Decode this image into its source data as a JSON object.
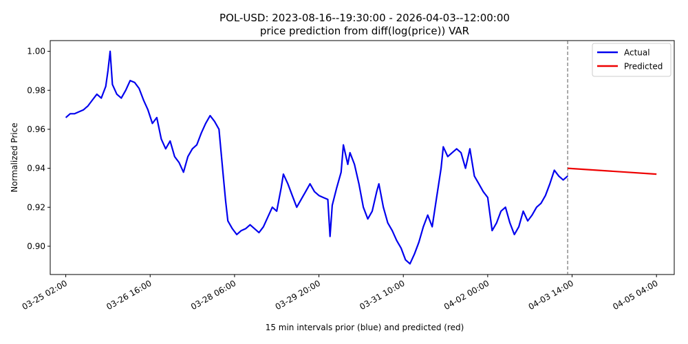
{
  "chart_data": {
    "type": "line",
    "title": "POL-USD: 2023-08-16--19:30:00 - 2026-04-03--12:00:00",
    "subtitle": "price prediction from diff(log(price)) VAR",
    "xlabel": "15 min intervals prior (blue) and predicted (red)",
    "ylabel": "Normalized Price",
    "x_tick_labels": [
      "03-25 02:00",
      "03-26 16:00",
      "03-28 06:00",
      "03-29 20:00",
      "03-31 10:00",
      "04-02 00:00",
      "04-03 14:00",
      "04-05 04:00"
    ],
    "x_tick_times": [
      "2026-03-25T02:00",
      "2026-03-26T16:00",
      "2026-03-28T06:00",
      "2026-03-29T20:00",
      "2026-03-31T10:00",
      "2026-04-02T00:00",
      "2026-04-03T14:00",
      "2026-04-05T04:00"
    ],
    "xlim": [
      "2026-03-24T19:00",
      "2026-04-05T12:00"
    ],
    "y_ticks": [
      "0.90",
      "0.92",
      "0.94",
      "0.96",
      "0.98",
      "1.00"
    ],
    "ylim": [
      0.8855,
      1.0055
    ],
    "forecast_start": "2026-04-03T12:00",
    "legend": {
      "position": "top-right",
      "entries": [
        "Actual",
        "Predicted"
      ]
    },
    "grid": false,
    "series": [
      {
        "name": "Actual",
        "color": "#0000ee",
        "points": [
          [
            "2026-03-25T02:00",
            0.966
          ],
          [
            "2026-03-25T04:00",
            0.968
          ],
          [
            "2026-03-25T06:00",
            0.968
          ],
          [
            "2026-03-25T08:00",
            0.969
          ],
          [
            "2026-03-25T10:00",
            0.97
          ],
          [
            "2026-03-25T12:00",
            0.972
          ],
          [
            "2026-03-25T14:00",
            0.975
          ],
          [
            "2026-03-25T16:00",
            0.978
          ],
          [
            "2026-03-25T18:00",
            0.976
          ],
          [
            "2026-03-25T20:00",
            0.982
          ],
          [
            "2026-03-25T21:00",
            0.99
          ],
          [
            "2026-03-25T22:00",
            1.0
          ],
          [
            "2026-03-25T23:00",
            0.983
          ],
          [
            "2026-03-26T01:00",
            0.978
          ],
          [
            "2026-03-26T03:00",
            0.976
          ],
          [
            "2026-03-26T05:00",
            0.98
          ],
          [
            "2026-03-26T07:00",
            0.985
          ],
          [
            "2026-03-26T09:00",
            0.984
          ],
          [
            "2026-03-26T11:00",
            0.981
          ],
          [
            "2026-03-26T13:00",
            0.975
          ],
          [
            "2026-03-26T15:00",
            0.97
          ],
          [
            "2026-03-26T17:00",
            0.963
          ],
          [
            "2026-03-26T19:00",
            0.966
          ],
          [
            "2026-03-26T21:00",
            0.955
          ],
          [
            "2026-03-26T23:00",
            0.95
          ],
          [
            "2026-03-27T01:00",
            0.954
          ],
          [
            "2026-03-27T03:00",
            0.946
          ],
          [
            "2026-03-27T05:00",
            0.943
          ],
          [
            "2026-03-27T07:00",
            0.938
          ],
          [
            "2026-03-27T09:00",
            0.946
          ],
          [
            "2026-03-27T11:00",
            0.95
          ],
          [
            "2026-03-27T13:00",
            0.952
          ],
          [
            "2026-03-27T15:00",
            0.958
          ],
          [
            "2026-03-27T17:00",
            0.963
          ],
          [
            "2026-03-27T19:00",
            0.967
          ],
          [
            "2026-03-27T21:00",
            0.964
          ],
          [
            "2026-03-27T23:00",
            0.96
          ],
          [
            "2026-03-28T01:00",
            0.935
          ],
          [
            "2026-03-28T02:00",
            0.923
          ],
          [
            "2026-03-28T03:00",
            0.913
          ],
          [
            "2026-03-28T05:00",
            0.909
          ],
          [
            "2026-03-28T07:00",
            0.906
          ],
          [
            "2026-03-28T09:00",
            0.908
          ],
          [
            "2026-03-28T11:00",
            0.909
          ],
          [
            "2026-03-28T13:00",
            0.911
          ],
          [
            "2026-03-28T15:00",
            0.909
          ],
          [
            "2026-03-28T17:00",
            0.907
          ],
          [
            "2026-03-28T19:00",
            0.91
          ],
          [
            "2026-03-28T21:00",
            0.915
          ],
          [
            "2026-03-28T23:00",
            0.92
          ],
          [
            "2026-03-29T01:00",
            0.918
          ],
          [
            "2026-03-29T03:00",
            0.93
          ],
          [
            "2026-03-29T04:00",
            0.937
          ],
          [
            "2026-03-29T06:00",
            0.932
          ],
          [
            "2026-03-29T08:00",
            0.926
          ],
          [
            "2026-03-29T10:00",
            0.92
          ],
          [
            "2026-03-29T12:00",
            0.924
          ],
          [
            "2026-03-29T14:00",
            0.928
          ],
          [
            "2026-03-29T16:00",
            0.932
          ],
          [
            "2026-03-29T18:00",
            0.928
          ],
          [
            "2026-03-29T20:00",
            0.926
          ],
          [
            "2026-03-29T22:00",
            0.925
          ],
          [
            "2026-03-30T00:00",
            0.924
          ],
          [
            "2026-03-30T01:00",
            0.905
          ],
          [
            "2026-03-30T02:00",
            0.921
          ],
          [
            "2026-03-30T04:00",
            0.93
          ],
          [
            "2026-03-30T06:00",
            0.938
          ],
          [
            "2026-03-30T07:00",
            0.952
          ],
          [
            "2026-03-30T09:00",
            0.942
          ],
          [
            "2026-03-30T10:00",
            0.948
          ],
          [
            "2026-03-30T12:00",
            0.942
          ],
          [
            "2026-03-30T14:00",
            0.932
          ],
          [
            "2026-03-30T16:00",
            0.92
          ],
          [
            "2026-03-30T18:00",
            0.914
          ],
          [
            "2026-03-30T20:00",
            0.918
          ],
          [
            "2026-03-30T22:00",
            0.928
          ],
          [
            "2026-03-30T23:00",
            0.932
          ],
          [
            "2026-03-31T01:00",
            0.92
          ],
          [
            "2026-03-31T03:00",
            0.912
          ],
          [
            "2026-03-31T05:00",
            0.908
          ],
          [
            "2026-03-31T07:00",
            0.903
          ],
          [
            "2026-03-31T09:00",
            0.899
          ],
          [
            "2026-03-31T11:00",
            0.893
          ],
          [
            "2026-03-31T13:00",
            0.891
          ],
          [
            "2026-03-31T15:00",
            0.896
          ],
          [
            "2026-03-31T17:00",
            0.902
          ],
          [
            "2026-03-31T19:00",
            0.91
          ],
          [
            "2026-03-31T21:00",
            0.916
          ],
          [
            "2026-03-31T23:00",
            0.91
          ],
          [
            "2026-04-01T01:00",
            0.925
          ],
          [
            "2026-04-01T03:00",
            0.94
          ],
          [
            "2026-04-01T04:00",
            0.951
          ],
          [
            "2026-04-01T06:00",
            0.946
          ],
          [
            "2026-04-01T08:00",
            0.948
          ],
          [
            "2026-04-01T10:00",
            0.95
          ],
          [
            "2026-04-01T12:00",
            0.948
          ],
          [
            "2026-04-01T14:00",
            0.94
          ],
          [
            "2026-04-01T16:00",
            0.95
          ],
          [
            "2026-04-01T18:00",
            0.936
          ],
          [
            "2026-04-01T20:00",
            0.932
          ],
          [
            "2026-04-01T22:00",
            0.928
          ],
          [
            "2026-04-02T00:00",
            0.925
          ],
          [
            "2026-04-02T02:00",
            0.908
          ],
          [
            "2026-04-02T04:00",
            0.912
          ],
          [
            "2026-04-02T06:00",
            0.918
          ],
          [
            "2026-04-02T08:00",
            0.92
          ],
          [
            "2026-04-02T10:00",
            0.912
          ],
          [
            "2026-04-02T12:00",
            0.906
          ],
          [
            "2026-04-02T14:00",
            0.91
          ],
          [
            "2026-04-02T16:00",
            0.918
          ],
          [
            "2026-04-02T18:00",
            0.913
          ],
          [
            "2026-04-02T20:00",
            0.916
          ],
          [
            "2026-04-02T22:00",
            0.92
          ],
          [
            "2026-04-03T00:00",
            0.922
          ],
          [
            "2026-04-03T02:00",
            0.926
          ],
          [
            "2026-04-03T04:00",
            0.932
          ],
          [
            "2026-04-03T06:00",
            0.939
          ],
          [
            "2026-04-03T08:00",
            0.936
          ],
          [
            "2026-04-03T10:00",
            0.934
          ],
          [
            "2026-04-03T12:00",
            0.936
          ]
        ]
      },
      {
        "name": "Predicted",
        "color": "#ee0000",
        "points": [
          [
            "2026-04-03T12:00",
            0.94
          ],
          [
            "2026-04-05T04:00",
            0.937
          ]
        ]
      }
    ]
  }
}
